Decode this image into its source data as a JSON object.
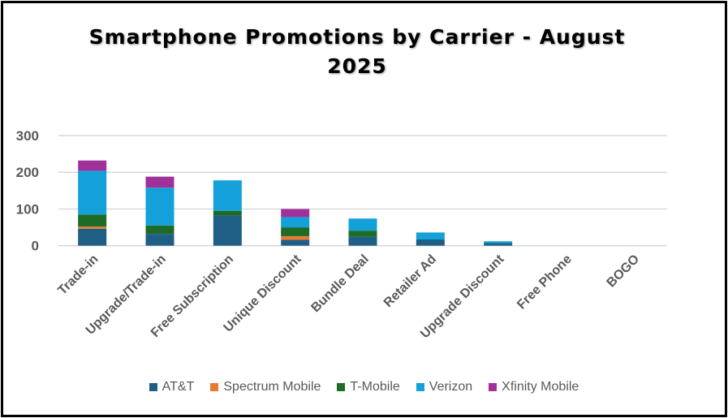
{
  "chart_data": {
    "type": "bar",
    "stacked": true,
    "title": "Smartphone Promotions by Carrier - August 2025",
    "xlabel": "",
    "ylabel": "",
    "ylim": [
      0,
      300
    ],
    "yticks": [
      0,
      100,
      200,
      300
    ],
    "grid": true,
    "legend_position": "bottom",
    "categories": [
      "Trade-in",
      "Upgrade/Trade-in",
      "Free Subscription",
      "Unique Discount",
      "Bundle Deal",
      "Retailer Ad",
      "Upgrade Discount",
      "Free Phone",
      "BOGO"
    ],
    "series": [
      {
        "name": "AT&T",
        "color": "#1f5f86",
        "values": [
          46,
          32,
          82,
          16,
          24,
          17,
          7,
          0,
          0
        ]
      },
      {
        "name": "Spectrum Mobile",
        "color": "#e97a32",
        "values": [
          6,
          0,
          0,
          10,
          0,
          0,
          0,
          0,
          0
        ]
      },
      {
        "name": "T-Mobile",
        "color": "#1e6b27",
        "values": [
          33,
          23,
          13,
          24,
          17,
          0,
          0,
          0,
          0
        ]
      },
      {
        "name": "Verizon",
        "color": "#14a1d9",
        "values": [
          119,
          103,
          83,
          28,
          33,
          19,
          5,
          0,
          0
        ]
      },
      {
        "name": "Xfinity Mobile",
        "color": "#a0309a",
        "values": [
          28,
          30,
          0,
          22,
          0,
          0,
          0,
          0,
          0
        ]
      }
    ]
  }
}
